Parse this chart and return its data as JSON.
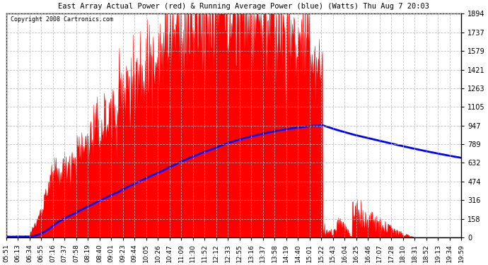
{
  "title": "East Array Actual Power (red) & Running Average Power (blue) (Watts) Thu Aug 7 20:03",
  "copyright": "Copyright 2008 Cartronics.com",
  "y_ticks": [
    0.0,
    157.9,
    315.7,
    473.6,
    631.5,
    789.4,
    947.2,
    1105.1,
    1263.0,
    1420.9,
    1578.7,
    1736.6,
    1894.5
  ],
  "ylim": [
    0,
    1894.5
  ],
  "background_color": "#ffffff",
  "plot_bg_color": "#ffffff",
  "grid_color": "#bbbbbb",
  "actual_color": "red",
  "avg_color": "blue",
  "x_labels": [
    "05:51",
    "06:13",
    "06:34",
    "06:55",
    "07:16",
    "07:37",
    "07:58",
    "08:19",
    "08:40",
    "09:01",
    "09:23",
    "09:44",
    "10:05",
    "10:26",
    "10:47",
    "11:09",
    "11:30",
    "11:52",
    "12:12",
    "12:33",
    "12:55",
    "13:16",
    "13:37",
    "13:58",
    "14:19",
    "14:40",
    "15:01",
    "15:22",
    "15:43",
    "16:04",
    "16:25",
    "16:46",
    "17:07",
    "17:28",
    "18:10",
    "18:31",
    "18:52",
    "19:13",
    "19:34",
    "19:59"
  ],
  "figsize": [
    6.9,
    3.75
  ],
  "dpi": 100
}
